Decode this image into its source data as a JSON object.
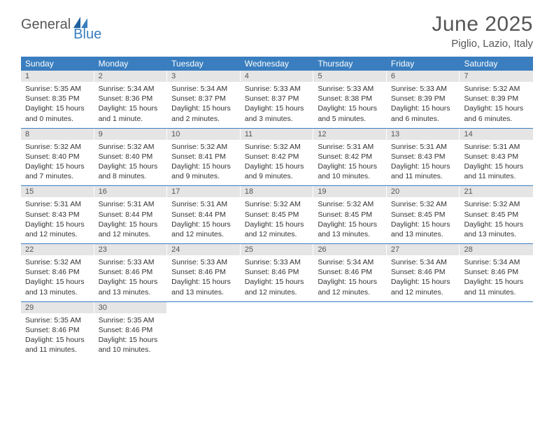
{
  "logo": {
    "text1": "General",
    "text2": "Blue"
  },
  "title": "June 2025",
  "location": "Piglio, Lazio, Italy",
  "colors": {
    "brand_blue": "#3a7ebf",
    "daynum_bg": "#e5e5e5",
    "text": "#555555"
  },
  "weekdays": [
    "Sunday",
    "Monday",
    "Tuesday",
    "Wednesday",
    "Thursday",
    "Friday",
    "Saturday"
  ],
  "weeks": [
    [
      {
        "n": "1",
        "sr": "5:35 AM",
        "ss": "8:35 PM",
        "dl": "15 hours and 0 minutes."
      },
      {
        "n": "2",
        "sr": "5:34 AM",
        "ss": "8:36 PM",
        "dl": "15 hours and 1 minute."
      },
      {
        "n": "3",
        "sr": "5:34 AM",
        "ss": "8:37 PM",
        "dl": "15 hours and 2 minutes."
      },
      {
        "n": "4",
        "sr": "5:33 AM",
        "ss": "8:37 PM",
        "dl": "15 hours and 3 minutes."
      },
      {
        "n": "5",
        "sr": "5:33 AM",
        "ss": "8:38 PM",
        "dl": "15 hours and 5 minutes."
      },
      {
        "n": "6",
        "sr": "5:33 AM",
        "ss": "8:39 PM",
        "dl": "15 hours and 6 minutes."
      },
      {
        "n": "7",
        "sr": "5:32 AM",
        "ss": "8:39 PM",
        "dl": "15 hours and 6 minutes."
      }
    ],
    [
      {
        "n": "8",
        "sr": "5:32 AM",
        "ss": "8:40 PM",
        "dl": "15 hours and 7 minutes."
      },
      {
        "n": "9",
        "sr": "5:32 AM",
        "ss": "8:40 PM",
        "dl": "15 hours and 8 minutes."
      },
      {
        "n": "10",
        "sr": "5:32 AM",
        "ss": "8:41 PM",
        "dl": "15 hours and 9 minutes."
      },
      {
        "n": "11",
        "sr": "5:32 AM",
        "ss": "8:42 PM",
        "dl": "15 hours and 9 minutes."
      },
      {
        "n": "12",
        "sr": "5:31 AM",
        "ss": "8:42 PM",
        "dl": "15 hours and 10 minutes."
      },
      {
        "n": "13",
        "sr": "5:31 AM",
        "ss": "8:43 PM",
        "dl": "15 hours and 11 minutes."
      },
      {
        "n": "14",
        "sr": "5:31 AM",
        "ss": "8:43 PM",
        "dl": "15 hours and 11 minutes."
      }
    ],
    [
      {
        "n": "15",
        "sr": "5:31 AM",
        "ss": "8:43 PM",
        "dl": "15 hours and 12 minutes."
      },
      {
        "n": "16",
        "sr": "5:31 AM",
        "ss": "8:44 PM",
        "dl": "15 hours and 12 minutes."
      },
      {
        "n": "17",
        "sr": "5:31 AM",
        "ss": "8:44 PM",
        "dl": "15 hours and 12 minutes."
      },
      {
        "n": "18",
        "sr": "5:32 AM",
        "ss": "8:45 PM",
        "dl": "15 hours and 12 minutes."
      },
      {
        "n": "19",
        "sr": "5:32 AM",
        "ss": "8:45 PM",
        "dl": "15 hours and 13 minutes."
      },
      {
        "n": "20",
        "sr": "5:32 AM",
        "ss": "8:45 PM",
        "dl": "15 hours and 13 minutes."
      },
      {
        "n": "21",
        "sr": "5:32 AM",
        "ss": "8:45 PM",
        "dl": "15 hours and 13 minutes."
      }
    ],
    [
      {
        "n": "22",
        "sr": "5:32 AM",
        "ss": "8:46 PM",
        "dl": "15 hours and 13 minutes."
      },
      {
        "n": "23",
        "sr": "5:33 AM",
        "ss": "8:46 PM",
        "dl": "15 hours and 13 minutes."
      },
      {
        "n": "24",
        "sr": "5:33 AM",
        "ss": "8:46 PM",
        "dl": "15 hours and 13 minutes."
      },
      {
        "n": "25",
        "sr": "5:33 AM",
        "ss": "8:46 PM",
        "dl": "15 hours and 12 minutes."
      },
      {
        "n": "26",
        "sr": "5:34 AM",
        "ss": "8:46 PM",
        "dl": "15 hours and 12 minutes."
      },
      {
        "n": "27",
        "sr": "5:34 AM",
        "ss": "8:46 PM",
        "dl": "15 hours and 12 minutes."
      },
      {
        "n": "28",
        "sr": "5:34 AM",
        "ss": "8:46 PM",
        "dl": "15 hours and 11 minutes."
      }
    ],
    [
      {
        "n": "29",
        "sr": "5:35 AM",
        "ss": "8:46 PM",
        "dl": "15 hours and 11 minutes."
      },
      {
        "n": "30",
        "sr": "5:35 AM",
        "ss": "8:46 PM",
        "dl": "15 hours and 10 minutes."
      },
      null,
      null,
      null,
      null,
      null
    ]
  ],
  "labels": {
    "sunrise": "Sunrise: ",
    "sunset": "Sunset: ",
    "daylight": "Daylight: "
  }
}
